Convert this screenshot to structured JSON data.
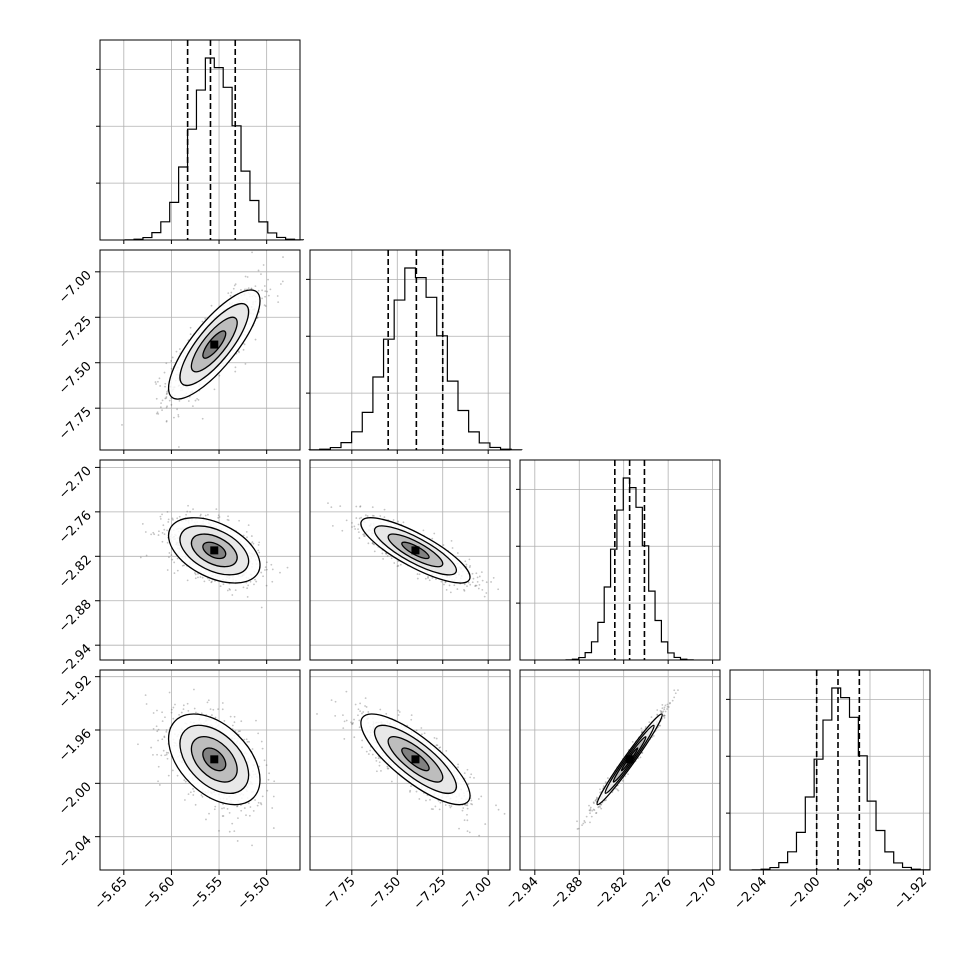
{
  "chart_data": {
    "type": "corner",
    "parameters": [
      {
        "range": [
          -5.675,
          -5.465
        ],
        "ticks": [
          -5.65,
          -5.6,
          -5.55,
          -5.5
        ],
        "tick_labels": [
          "−5.65",
          "−5.60",
          "−5.55",
          "−5.50"
        ],
        "mean": -5.555,
        "std": 0.024,
        "quantiles": [
          -5.583,
          -5.559,
          -5.533
        ]
      },
      {
        "range": [
          -7.98,
          -6.88
        ],
        "ticks": [
          -7.75,
          -7.5,
          -7.25,
          -7.0
        ],
        "tick_labels": [
          "−7.75",
          "−7.50",
          "−7.25",
          "−7.00"
        ],
        "mean": -7.4,
        "std": 0.15,
        "quantiles": [
          -7.55,
          -7.395,
          -7.25
        ]
      },
      {
        "range": [
          -2.96,
          -2.69
        ],
        "ticks": [
          -2.94,
          -2.88,
          -2.82,
          -2.76,
          -2.7
        ],
        "tick_labels": [
          "−2.94",
          "−2.88",
          "−2.82",
          "−2.76",
          "−2.70"
        ],
        "mean": -2.812,
        "std": 0.022,
        "quantiles": [
          -2.832,
          -2.812,
          -2.792
        ]
      },
      {
        "range": [
          -2.065,
          -1.915
        ],
        "ticks": [
          -2.04,
          -2.0,
          -1.96,
          -1.92
        ],
        "tick_labels": [
          "−2.04",
          "−2.00",
          "−1.96",
          "−1.92"
        ],
        "mean": -1.982,
        "std": 0.017,
        "quantiles": [
          -2.0,
          -1.984,
          -1.968
        ]
      }
    ],
    "correlations": {
      "1-0": 0.8,
      "2-0": -0.45,
      "2-1": -0.82,
      "3-0": -0.45,
      "3-1": -0.8,
      "3-2": 0.98
    },
    "histogram_bins": 20,
    "quantile_lines": "dashed",
    "grid": true,
    "xlabel": "",
    "ylabel": "",
    "title": ""
  }
}
